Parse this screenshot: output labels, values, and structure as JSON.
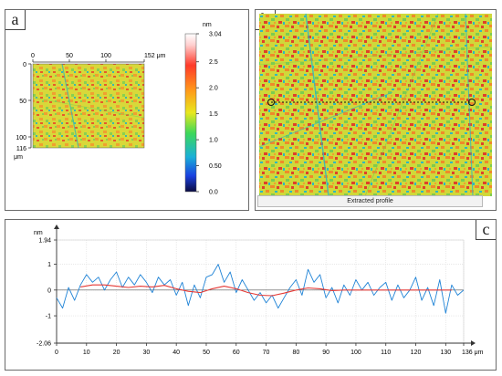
{
  "panels": {
    "a": {
      "letter": "a",
      "x_ticks": [
        "0",
        "50",
        "100",
        "152 μm"
      ],
      "y_ticks": [
        "0",
        "50",
        "100",
        "116"
      ],
      "y_unit": "μm",
      "colorbar": {
        "unit": "nm",
        "ticks": [
          "3.04",
          "2.5",
          "2.0",
          "1.5",
          "1.0",
          "0.50",
          "0.0"
        ],
        "tick_values": [
          3.04,
          2.5,
          2.0,
          1.5,
          1.0,
          0.5,
          0.0
        ],
        "range": [
          0,
          3.04
        ]
      }
    },
    "b": {
      "letter": "b",
      "caption": "Extracted profile"
    },
    "c": {
      "letter": "c"
    }
  },
  "chart_data": {
    "type": "line",
    "xlabel": "μm",
    "ylabel": "nm",
    "x_tick_labels": [
      "0",
      "10",
      "20",
      "30",
      "40",
      "50",
      "60",
      "70",
      "80",
      "90",
      "100",
      "110",
      "120",
      "130",
      "136 μm"
    ],
    "x_ticks": [
      0,
      10,
      20,
      30,
      40,
      50,
      60,
      70,
      80,
      90,
      100,
      110,
      120,
      130,
      136
    ],
    "y_tick_labels": [
      "1.94",
      "1",
      "0",
      "-1",
      "-2.06"
    ],
    "y_ticks": [
      1.94,
      1,
      0,
      -1,
      -2.06
    ],
    "xlim": [
      0,
      136
    ],
    "ylim": [
      -2.06,
      1.94
    ],
    "grid": true,
    "series": [
      {
        "color": "#1f83d6",
        "x": [
          0,
          2,
          4,
          6,
          8,
          10,
          12,
          14,
          16,
          18,
          20,
          22,
          24,
          26,
          28,
          30,
          32,
          34,
          36,
          38,
          40,
          42,
          44,
          46,
          48,
          50,
          52,
          54,
          56,
          58,
          60,
          62,
          64,
          66,
          68,
          70,
          72,
          74,
          76,
          78,
          80,
          82,
          84,
          86,
          88,
          90,
          92,
          94,
          96,
          98,
          100,
          102,
          104,
          106,
          108,
          110,
          112,
          114,
          116,
          118,
          120,
          122,
          124,
          126,
          128,
          130,
          132,
          134,
          136
        ],
        "y": [
          -0.3,
          -0.7,
          0.1,
          -0.4,
          0.2,
          0.6,
          0.3,
          0.5,
          0.0,
          0.4,
          0.7,
          0.1,
          0.5,
          0.2,
          0.6,
          0.3,
          -0.1,
          0.5,
          0.2,
          0.4,
          -0.2,
          0.3,
          -0.6,
          0.2,
          -0.3,
          0.5,
          0.6,
          1.0,
          0.3,
          0.7,
          -0.1,
          0.4,
          0.0,
          -0.4,
          -0.1,
          -0.5,
          -0.2,
          -0.7,
          -0.3,
          0.1,
          0.4,
          -0.2,
          0.8,
          0.3,
          0.6,
          -0.3,
          0.1,
          -0.5,
          0.2,
          -0.2,
          0.4,
          0.0,
          0.3,
          -0.2,
          0.1,
          0.3,
          -0.4,
          0.2,
          -0.3,
          0.0,
          0.5,
          -0.4,
          0.1,
          -0.6,
          0.4,
          -0.9,
          0.2,
          -0.2,
          0.0
        ]
      },
      {
        "color": "#e53935",
        "x": [
          8,
          12,
          16,
          20,
          24,
          28,
          32,
          36,
          40,
          44,
          48,
          52,
          56,
          60,
          64,
          68,
          72,
          76,
          80,
          84,
          88,
          92,
          96,
          100,
          104,
          108,
          112,
          116,
          120,
          124,
          128,
          132
        ],
        "y": [
          0.12,
          0.2,
          0.2,
          0.15,
          0.1,
          0.15,
          0.12,
          0.18,
          0.05,
          -0.05,
          -0.1,
          0.05,
          0.15,
          0.05,
          -0.1,
          -0.2,
          -0.22,
          -0.12,
          0.0,
          0.08,
          0.05,
          -0.02,
          0.0,
          0.0,
          0.0,
          0.0,
          0.0,
          0.0,
          0.0,
          0.0,
          0.0,
          0.0
        ]
      }
    ]
  }
}
